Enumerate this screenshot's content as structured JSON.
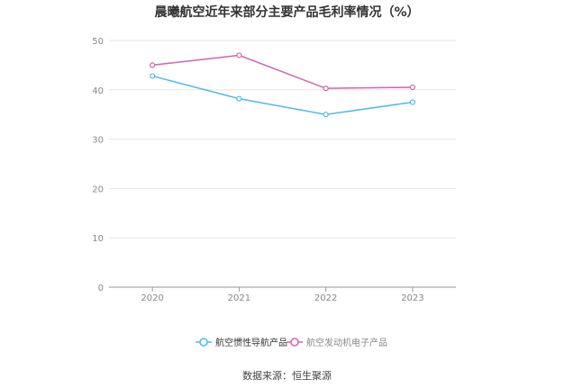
{
  "chart_data": {
    "type": "line",
    "title": "晨曦航空近年来部分主要产品毛利率情况（%）",
    "categories": [
      "2020",
      "2021",
      "2022",
      "2023"
    ],
    "ylim": [
      0,
      50
    ],
    "yticks": [
      0,
      10,
      20,
      30,
      40,
      50
    ],
    "grid": true,
    "legend_position": "bottom",
    "series": [
      {
        "name": "航空惯性导航产品",
        "color": "#4dbbe8",
        "values": [
          42.8,
          38.2,
          35.0,
          37.5
        ]
      },
      {
        "name": "航空发动机电子产品",
        "color": "#d462b3",
        "values": [
          45.0,
          47.0,
          40.3,
          40.5
        ]
      }
    ]
  },
  "source": "数据来源：恒生聚源"
}
